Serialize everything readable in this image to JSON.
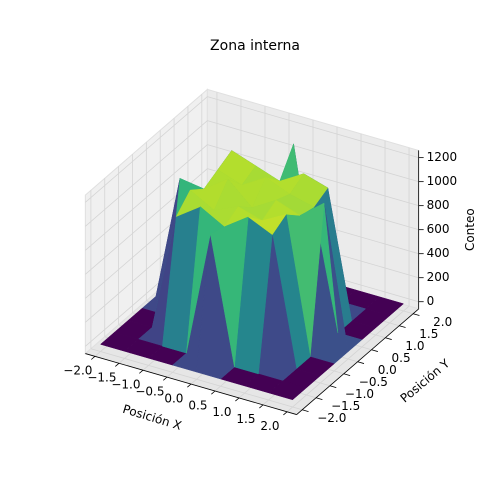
{
  "chart_data": {
    "type": "surface",
    "title": "Zona interna",
    "xlabel": "Posición X",
    "ylabel": "Posición Y",
    "zlabel": "Conteo",
    "colormap": "viridis",
    "x": [
      -2,
      -1.5,
      -1,
      -0.5,
      0,
      0.5,
      1,
      1.5,
      2
    ],
    "y": [
      -2,
      -1.5,
      -1,
      -0.5,
      0,
      0.5,
      1,
      1.5,
      2
    ],
    "z": [
      [
        0,
        0,
        0,
        0,
        0,
        0,
        0,
        0,
        0
      ],
      [
        0,
        0,
        0,
        0,
        1050,
        0,
        0,
        0,
        0
      ],
      [
        0,
        0,
        980,
        1120,
        1010,
        1150,
        1060,
        0,
        0
      ],
      [
        0,
        0,
        1100,
        990,
        1080,
        1020,
        1130,
        0,
        0
      ],
      [
        0,
        1040,
        1010,
        1150,
        970,
        1090,
        1020,
        1180,
        0
      ],
      [
        0,
        0,
        1070,
        1000,
        1120,
        1040,
        990,
        0,
        0
      ],
      [
        0,
        0,
        1130,
        1060,
        990,
        1110,
        1050,
        0,
        0
      ],
      [
        0,
        0,
        0,
        0,
        1200,
        0,
        0,
        0,
        0
      ],
      [
        0,
        0,
        0,
        0,
        0,
        0,
        0,
        0,
        0
      ]
    ],
    "xlim": [
      -2.2,
      2.2
    ],
    "ylim": [
      -2.2,
      2.2
    ],
    "zlim": [
      -60,
      1260
    ],
    "xticks": [
      {
        "value": -2,
        "label": "−2.0"
      },
      {
        "value": -1.5,
        "label": "−1.5"
      },
      {
        "value": -1,
        "label": "−1.0"
      },
      {
        "value": -0.5,
        "label": "−0.5"
      },
      {
        "value": 0,
        "label": "0.0"
      },
      {
        "value": 0.5,
        "label": "0.5"
      },
      {
        "value": 1,
        "label": "1.0"
      },
      {
        "value": 1.5,
        "label": "1.5"
      },
      {
        "value": 2,
        "label": "2.0"
      }
    ],
    "yticks": [
      {
        "value": -2,
        "label": "−2.0"
      },
      {
        "value": -1.5,
        "label": "−1.5"
      },
      {
        "value": -1,
        "label": "−1.0"
      },
      {
        "value": -0.5,
        "label": "−0.5"
      },
      {
        "value": 0,
        "label": "0.0"
      },
      {
        "value": 0.5,
        "label": "0.5"
      },
      {
        "value": 1,
        "label": "1.0"
      },
      {
        "value": 1.5,
        "label": "1.5"
      },
      {
        "value": 2,
        "label": "2.0"
      }
    ],
    "zticks": [
      0,
      200,
      400,
      600,
      800,
      1000,
      1200
    ],
    "grid": true
  }
}
